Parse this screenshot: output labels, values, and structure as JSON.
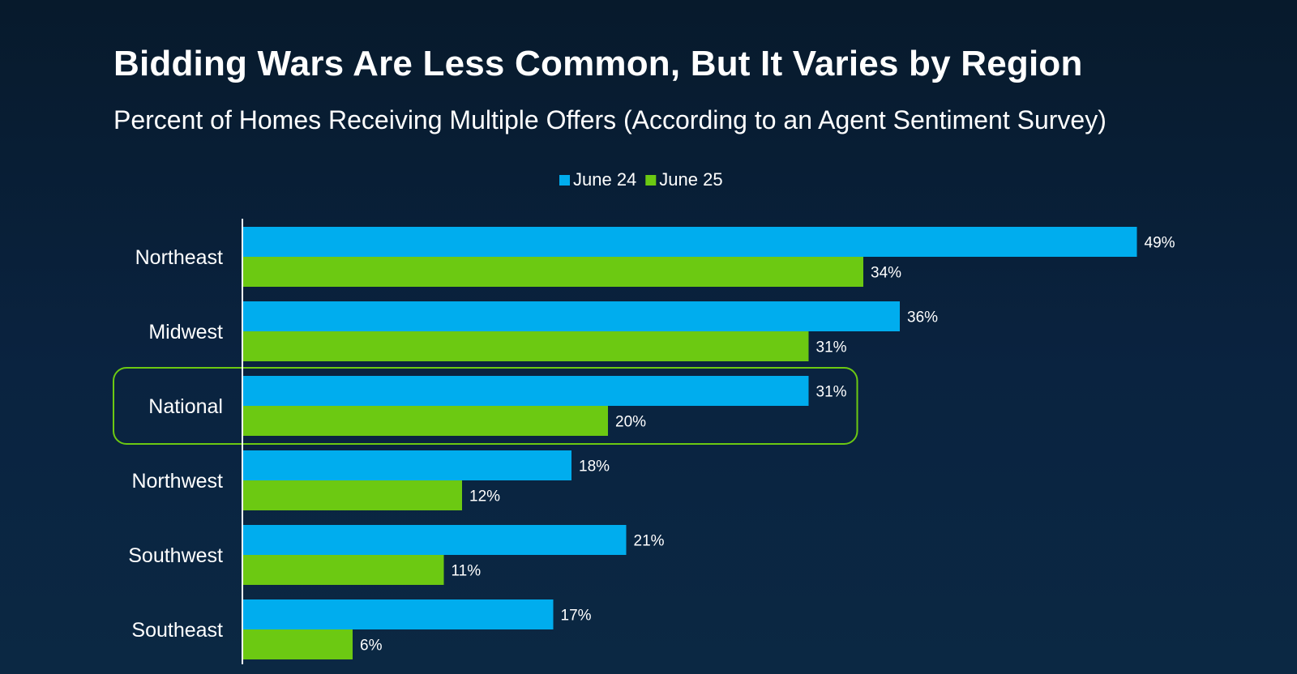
{
  "title": "Bidding Wars Are Less Common, But It Varies by Region",
  "subtitle": "Percent of Homes Receiving Multiple Offers (According to an Agent Sentiment Survey)",
  "chart_data": {
    "type": "bar",
    "orientation": "horizontal",
    "categories": [
      "Northeast",
      "Midwest",
      "National",
      "Northwest",
      "Southwest",
      "Southeast"
    ],
    "series": [
      {
        "name": "June 24",
        "color": "#00adee",
        "values": [
          49,
          36,
          31,
          18,
          21,
          17
        ]
      },
      {
        "name": "June 25",
        "color": "#6cc912",
        "values": [
          34,
          31,
          20,
          12,
          11,
          6
        ]
      }
    ],
    "value_suffix": "%",
    "highlight_category": "National",
    "highlight_color": "#6cc912",
    "legend_position": "top-center",
    "grid": false,
    "xlim": [
      0,
      50
    ]
  }
}
